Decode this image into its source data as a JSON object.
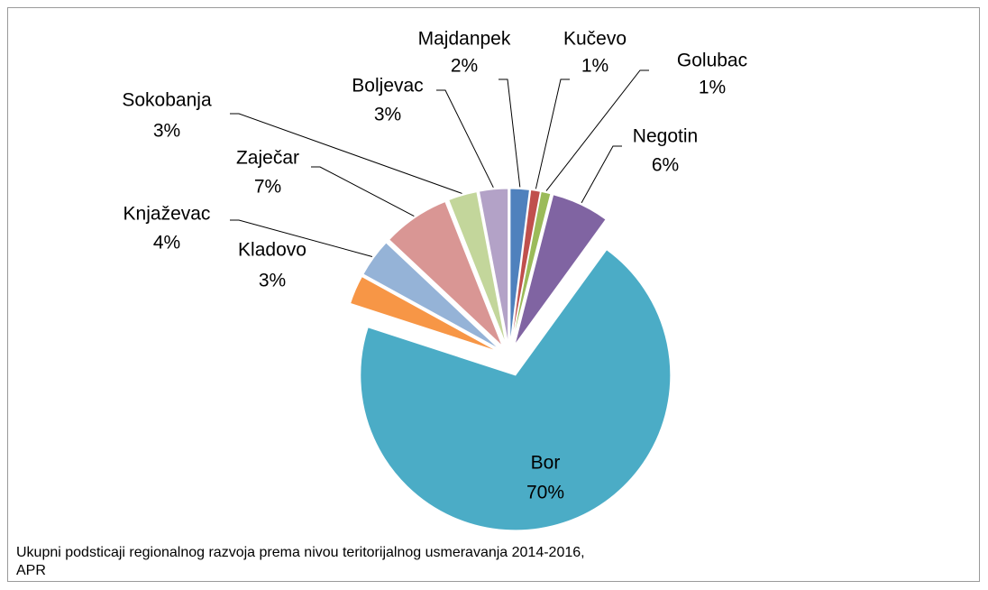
{
  "chart_data": {
    "type": "pie",
    "categories": [
      "Majdanpek",
      "Kučevo",
      "Golubac",
      "Negotin",
      "Bor",
      "Kladovo",
      "Knjaževac",
      "Zaječar",
      "Sokobanja",
      "Boljevac"
    ],
    "values": [
      2,
      1,
      1,
      6,
      70,
      3,
      4,
      7,
      3,
      3
    ],
    "value_labels": [
      "2%",
      "1%",
      "1%",
      "6%",
      "70%",
      "3%",
      "4%",
      "7%",
      "3%",
      "3%"
    ],
    "colors": [
      "#4f81bd",
      "#c0504d",
      "#9bbb59",
      "#8064a2",
      "#4bacc6",
      "#f79646",
      "#95b3d7",
      "#d99694",
      "#c3d69b",
      "#b3a2c7"
    ],
    "caption": [
      "Ukupni podsticaji regionalnog razvoja prema nivou teritorijalnog usmeravanja 2014-2016,",
      "APR"
    ]
  }
}
